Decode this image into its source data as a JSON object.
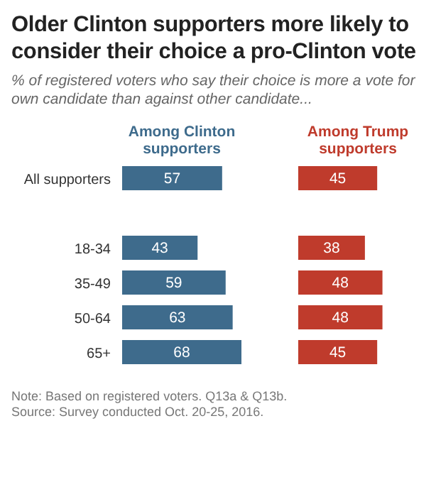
{
  "chart_data": [
    {
      "type": "bar",
      "orientation": "horizontal",
      "title": "Older Clinton supporters more likely to consider their choice a pro-Clinton vote",
      "subtitle": "% of registered voters who say their choice is more a vote for own candidate than against other candidate...",
      "categories": [
        "All supporters",
        null,
        "18-34",
        "35-49",
        "50-64",
        "65+"
      ],
      "series": [
        {
          "name": "Among Clinton supporters",
          "color": "#3e6b8c",
          "values": [
            57,
            null,
            43,
            59,
            63,
            68
          ]
        }
      ],
      "data_labels": true,
      "legend": "top",
      "tick_labels": "y",
      "annotations": [
        "Note: Based on registered voters. Q13a & Q13b.",
        "Source: Survey conducted Oct. 20-25, 2016."
      ]
    },
    {
      "type": "bar",
      "orientation": "horizontal",
      "series": [
        {
          "name": "Among Trump supporters",
          "color": "#bf3b2c",
          "values": [
            45,
            null,
            38,
            48,
            48,
            45
          ]
        }
      ],
      "data_labels": true,
      "legend": "top",
      "tick_labels": false
    }
  ]
}
